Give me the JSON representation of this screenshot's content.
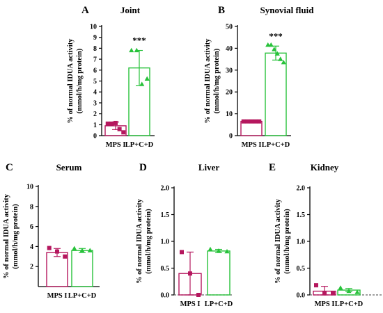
{
  "colors": {
    "mps": "#b5175e",
    "lp": "#27c23a",
    "axis": "#000000",
    "baseline": "#666666"
  },
  "chart_data": [
    {
      "panel": "A",
      "type": "bar",
      "title": "Joint",
      "ylabel": "% of normal IDUA activity",
      "ylabel2": "(mmol/h/mg protein)",
      "ylim": [
        0,
        10
      ],
      "yticks": [
        0,
        1,
        2,
        3,
        4,
        5,
        6,
        7,
        8,
        9,
        10
      ],
      "categories": [
        "MPS I",
        "LP+C+D"
      ],
      "values": [
        0.9,
        6.2
      ],
      "errors": [
        0.35,
        1.6
      ],
      "points": [
        [
          1.1,
          1.1,
          1.15,
          0.6,
          0.3
        ],
        [
          7.8,
          7.8,
          4.7,
          5.2
        ]
      ],
      "markers": [
        "square",
        "triangle"
      ],
      "significance": "***",
      "significance_index": 1,
      "zero_line": false
    },
    {
      "panel": "B",
      "type": "bar",
      "title": "Synovial fluid",
      "ylabel": "% of normal IDUA activity",
      "ylabel2": "(mmol/h/mg protein)",
      "ylim": [
        0,
        50
      ],
      "yticks": [
        0,
        10,
        20,
        30,
        40,
        50
      ],
      "categories": [
        "MPS I",
        "LP+C+D"
      ],
      "values": [
        6.5,
        37.8
      ],
      "errors": [
        0.5,
        3.2
      ],
      "points": [
        [
          6.5,
          6.5,
          6.5,
          6.5,
          6.5
        ],
        [
          41.5,
          41.5,
          39.5,
          37.5,
          35,
          33.5
        ]
      ],
      "markers": [
        "square",
        "triangle"
      ],
      "significance": "***",
      "significance_index": 1,
      "zero_line": false
    },
    {
      "panel": "C",
      "type": "bar",
      "title": "Serum",
      "ylabel": "% of normal IDUA activity",
      "ylabel2": "(mmol/h/mg protein)",
      "ylim": [
        0,
        10
      ],
      "yticks": [
        2,
        4,
        6,
        8,
        10
      ],
      "categories": [
        "MPS I",
        "LP+C+D"
      ],
      "values": [
        3.4,
        3.6
      ],
      "errors": [
        0.4,
        0.2
      ],
      "points": [
        [
          3.85,
          3.5,
          3.0
        ],
        [
          3.8,
          3.6,
          3.6
        ]
      ],
      "markers": [
        "square",
        "triangle"
      ],
      "significance": "",
      "significance_index": 1,
      "zero_line": false
    },
    {
      "panel": "D",
      "type": "bar",
      "title": "Liver",
      "ylabel": "% of normal IDUA activity",
      "ylabel2": "(mmol/h/mg protein)",
      "ylim": [
        0,
        2.0
      ],
      "yticks": [
        0.0,
        0.5,
        1.0,
        1.5,
        2.0
      ],
      "categories": [
        "MPS I",
        "LP+C+D"
      ],
      "values": [
        0.4,
        0.82
      ],
      "errors": [
        0.4,
        0.03
      ],
      "points": [
        [
          0.8,
          0.4,
          0.0
        ],
        [
          0.85,
          0.82,
          0.81
        ]
      ],
      "markers": [
        "square",
        "triangle"
      ],
      "significance": "",
      "significance_index": 1,
      "zero_line": true
    },
    {
      "panel": "E",
      "type": "bar",
      "title": "Kidney",
      "ylabel": "% of normal IDUA activity",
      "ylabel2": "(mmol/h/mg protein)",
      "ylim": [
        0,
        2.0
      ],
      "yticks": [
        0.0,
        0.5,
        1.0,
        1.5,
        2.0
      ],
      "categories": [
        "MPS I",
        "LP+C+D"
      ],
      "values": [
        0.07,
        0.09
      ],
      "errors": [
        0.09,
        0.03
      ],
      "points": [
        [
          0.18,
          0.03,
          0.03
        ],
        [
          0.13,
          0.07,
          0.05
        ]
      ],
      "markers": [
        "square",
        "triangle"
      ],
      "significance": "",
      "significance_index": 1,
      "zero_line": true
    }
  ]
}
